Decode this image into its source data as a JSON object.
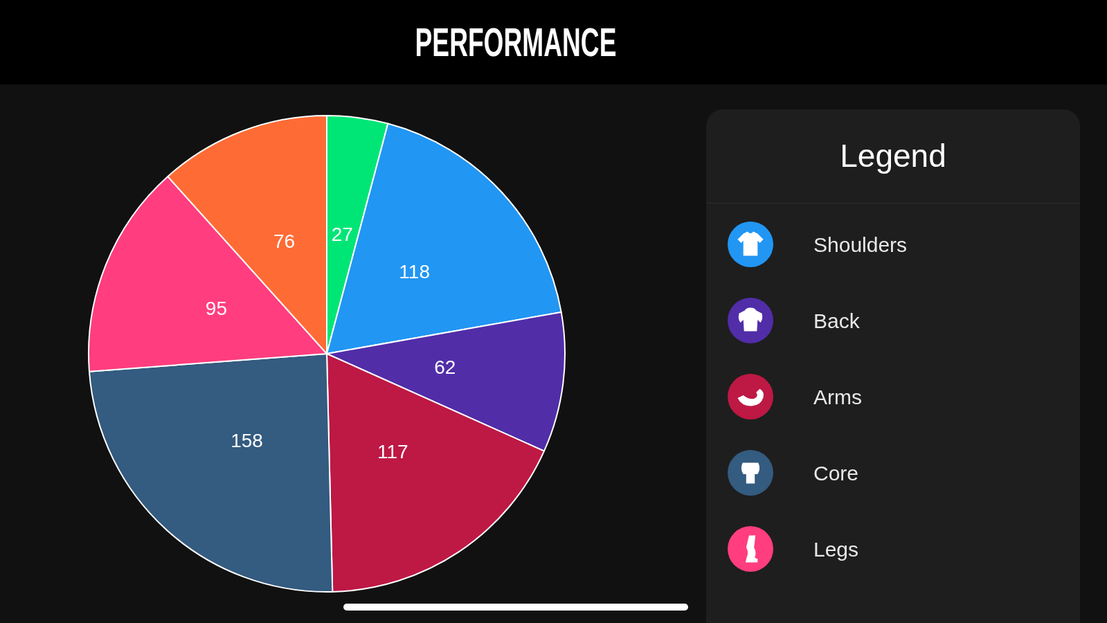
{
  "chart_data": {
    "type": "pie",
    "title": "PERFORMANCE",
    "legend_title": "Legend",
    "categories": [
      null,
      "Shoulders",
      "Back",
      "Arms",
      "Core",
      "Legs",
      null
    ],
    "values": [
      27,
      118,
      62,
      117,
      158,
      95,
      76
    ],
    "colors": [
      "#00e676",
      "#2196f3",
      "#512da8",
      "#be1845",
      "#345b80",
      "#ff3d7f",
      "#ff6b35"
    ],
    "data_labels": true,
    "legend": "right"
  }
}
